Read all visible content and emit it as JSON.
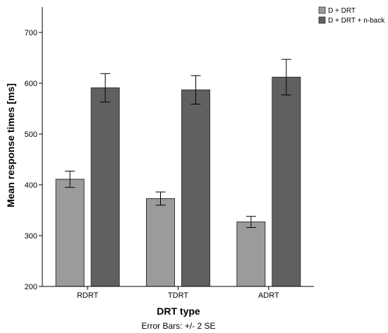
{
  "chart_data": {
    "type": "bar",
    "categories": [
      "RDRT",
      "TDRT",
      "ADRT"
    ],
    "series": [
      {
        "name": "D + DRT",
        "values": [
          411,
          373,
          327
        ],
        "error": [
          16,
          13,
          11
        ],
        "color": "#9b9b9b"
      },
      {
        "name": "D + DRT + n-back",
        "values": [
          591,
          587,
          612
        ],
        "error": [
          28,
          28,
          35
        ],
        "color": "#606060"
      }
    ],
    "xlabel": "DRT type",
    "ylabel": "Mean response times [ms]",
    "ylim": [
      200,
      750
    ],
    "yticks": [
      200,
      300,
      400,
      500,
      600,
      700
    ],
    "footnote": "Error Bars: +/- 2 SE",
    "legend_position": "top-right",
    "grid": false
  }
}
